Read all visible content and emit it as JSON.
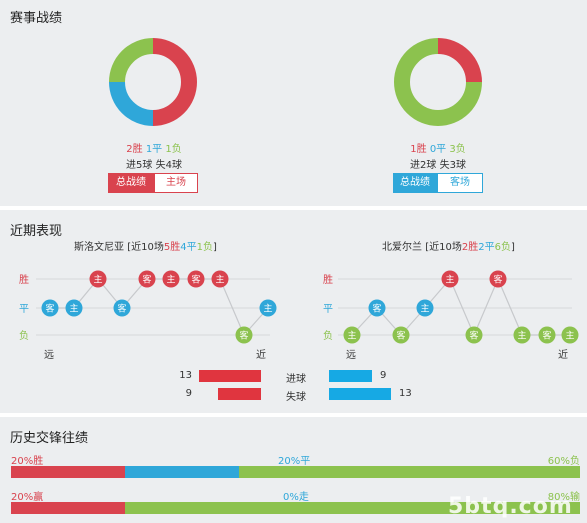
{
  "match_record": {
    "title": "赛事战绩",
    "home": {
      "chart_data": {
        "type": "pie",
        "labels": [
          "胜",
          "平",
          "负"
        ],
        "values": [
          2,
          1,
          1
        ],
        "colors": [
          "#d9434e",
          "#2fa7d9",
          "#8cc24e"
        ]
      },
      "wins": "2胜",
      "draws": "1平",
      "losses": "1负",
      "goals": "进5球 失4球",
      "tab_active": "总战绩",
      "tab_other": "主场"
    },
    "away": {
      "chart_data": {
        "type": "pie",
        "labels": [
          "胜",
          "平",
          "负"
        ],
        "values": [
          1,
          0,
          3
        ],
        "colors": [
          "#d9434e",
          "#2fa7d9",
          "#8cc24e"
        ]
      },
      "wins": "1胜",
      "draws": "0平",
      "losses": "3负",
      "goals": "进2球 失3球",
      "tab_active": "总战绩",
      "tab_other": "客场"
    }
  },
  "recent_form": {
    "title": "近期表现",
    "row_labels": {
      "win": "胜",
      "draw": "平",
      "loss": "负"
    },
    "axis": {
      "far": "远",
      "near": "近"
    },
    "home": {
      "team": "斯洛文尼亚",
      "summary_prefix": "[近10场",
      "wins": "5胜",
      "draws": "4平",
      "losses": "1负",
      "summary_suffix": "]",
      "chart_data": {
        "type": "line",
        "results": [
          "D",
          "D",
          "W",
          "D",
          "W",
          "W",
          "W",
          "W",
          "L",
          "D"
        ],
        "venues": [
          "客",
          "主",
          "主",
          "客",
          "客",
          "主",
          "客",
          "主",
          "客",
          "主"
        ]
      }
    },
    "away": {
      "team": "北爱尔兰",
      "summary_prefix": "[近10场",
      "wins": "2胜",
      "draws": "2平",
      "losses": "6负",
      "summary_suffix": "]",
      "chart_data": {
        "type": "line",
        "results": [
          "L",
          "D",
          "L",
          "D",
          "W",
          "L",
          "W",
          "L",
          "L",
          "L"
        ],
        "venues": [
          "主",
          "客",
          "客",
          "主",
          "主",
          "客",
          "客",
          "主",
          "客",
          "主"
        ]
      }
    },
    "goals": {
      "scored_label": "进球",
      "conceded_label": "失球",
      "home_scored": "13",
      "home_conceded": "9",
      "away_scored": "9",
      "away_conceded": "13",
      "chart_data": {
        "type": "bar",
        "home": [
          13,
          9
        ],
        "away": [
          9,
          13
        ],
        "categories": [
          "进球",
          "失球"
        ]
      }
    }
  },
  "h2h": {
    "title": "历史交锋往绩",
    "result_bar": {
      "win_label": "20%胜",
      "draw_label": "20%平",
      "loss_label": "60%负",
      "chart_data": {
        "type": "bar",
        "values": [
          20,
          20,
          60
        ]
      }
    },
    "handicap_bar": {
      "win_label": "20%赢",
      "draw_label": "0%走",
      "loss_label": "80%输",
      "chart_data": {
        "type": "bar",
        "values": [
          20,
          0,
          80
        ]
      }
    },
    "watermark": "5btq.com"
  }
}
